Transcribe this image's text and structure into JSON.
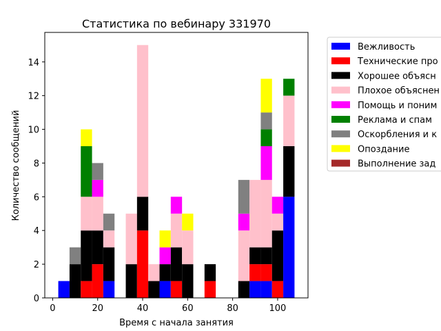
{
  "chart_data": {
    "type": "bar",
    "stacked": true,
    "title": "Статистика по вебинару 331970",
    "xlabel": "Время с начала занятия",
    "ylabel": "Количество сообщений",
    "xlim": [
      -3.5,
      113.5
    ],
    "ylim": [
      0,
      15.75
    ],
    "bin_width": 5,
    "x_ticks": [
      0,
      20,
      40,
      60,
      80,
      100
    ],
    "y_ticks": [
      0,
      2,
      4,
      6,
      8,
      10,
      12,
      14
    ],
    "x": [
      5,
      10,
      15,
      20,
      25,
      30,
      35,
      40,
      45,
      50,
      55,
      60,
      65,
      70,
      75,
      80,
      85,
      90,
      95,
      100,
      105
    ],
    "series": [
      {
        "name": "Вежливость",
        "color": "#0000ff",
        "values": [
          1,
          0,
          0,
          0,
          1,
          0,
          0,
          0,
          0,
          1,
          0,
          0,
          0,
          0,
          0,
          0,
          0,
          1,
          1,
          0,
          6
        ]
      },
      {
        "name": "Технические проблемы",
        "color": "#ff0000",
        "values": [
          0,
          0,
          1,
          2,
          0,
          0,
          0,
          4,
          0,
          0,
          1,
          0,
          0,
          1,
          0,
          0,
          0,
          1,
          1,
          1,
          0
        ]
      },
      {
        "name": "Хорошее объяснение",
        "color": "#000000",
        "values": [
          0,
          2,
          3,
          2,
          2,
          0,
          2,
          2,
          1,
          1,
          2,
          2,
          0,
          1,
          0,
          0,
          1,
          1,
          1,
          3,
          3
        ]
      },
      {
        "name": "Плохое объяснение",
        "color": "#ffc0cb",
        "values": [
          0,
          0,
          2,
          2,
          1,
          0,
          3,
          9,
          1,
          0,
          2,
          2,
          0,
          0,
          0,
          0,
          3,
          4,
          4,
          1,
          3
        ]
      },
      {
        "name": "Помощь и понимание",
        "color": "#ff00ff",
        "values": [
          0,
          0,
          0,
          1,
          0,
          0,
          0,
          0,
          0,
          1,
          1,
          0,
          0,
          0,
          0,
          0,
          1,
          0,
          2,
          1,
          0
        ]
      },
      {
        "name": "Реклама и спам",
        "color": "#008000",
        "values": [
          0,
          0,
          3,
          0,
          0,
          0,
          0,
          0,
          0,
          0,
          0,
          0,
          0,
          0,
          0,
          0,
          0,
          0,
          1,
          0,
          1
        ]
      },
      {
        "name": "Оскорбления и конфликты",
        "color": "#808080",
        "values": [
          0,
          1,
          0,
          1,
          1,
          0,
          0,
          0,
          0,
          0,
          0,
          0,
          0,
          0,
          0,
          0,
          2,
          0,
          1,
          0,
          0
        ]
      },
      {
        "name": "Опоздание",
        "color": "#ffff00",
        "values": [
          0,
          0,
          1,
          0,
          0,
          0,
          0,
          0,
          0,
          1,
          0,
          1,
          0,
          0,
          0,
          0,
          0,
          0,
          2,
          0,
          0
        ]
      },
      {
        "name": "Выполнение заданий",
        "color": "#a52a2a",
        "values": [
          0,
          0,
          0,
          0,
          0,
          0,
          0,
          0,
          0,
          0,
          0,
          0,
          0,
          0,
          0,
          0,
          0,
          0,
          0,
          0,
          0
        ]
      }
    ],
    "legend": {
      "placement": "right",
      "labels": [
        "Вежливость",
        "Технические про",
        "Хорошее объясн",
        "Плохое объяснен",
        "Помощь и поним",
        "Реклама и спам",
        "Оскорбления и к",
        "Опоздание",
        "Выполнение зад"
      ]
    }
  }
}
